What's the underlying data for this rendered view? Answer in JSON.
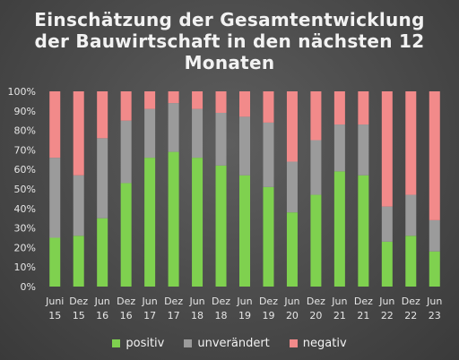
{
  "chart_data": {
    "type": "bar",
    "stacked": true,
    "title": "Einschätzung der Gesamtentwicklung der Bauwirtschaft in den nächsten 12 Monaten",
    "title_lines": [
      "Einschätzung der Gesamtentwicklung",
      "der Bauwirtschaft in den nächsten 12",
      "Monaten"
    ],
    "categories": [
      "Juni 15",
      "Dez 15",
      "Jun 16",
      "Dez 16",
      "Jun 17",
      "Dez 17",
      "Jun 18",
      "Dez 18",
      "Jun 19",
      "Dez 19",
      "Jun 20",
      "Dez 20",
      "Jun 21",
      "Dez 21",
      "Jun 22",
      "Dez 22",
      "Jun 23"
    ],
    "category_lines": [
      [
        "Juni",
        "15"
      ],
      [
        "Dez",
        "15"
      ],
      [
        "Jun",
        "16"
      ],
      [
        "Dez",
        "16"
      ],
      [
        "Jun",
        "17"
      ],
      [
        "Dez",
        "17"
      ],
      [
        "Jun",
        "18"
      ],
      [
        "Dez",
        "18"
      ],
      [
        "Jun",
        "19"
      ],
      [
        "Dez",
        "19"
      ],
      [
        "Jun",
        "20"
      ],
      [
        "Dez",
        "20"
      ],
      [
        "Jun",
        "21"
      ],
      [
        "Dez",
        "21"
      ],
      [
        "Jun",
        "22"
      ],
      [
        "Dez",
        "22"
      ],
      [
        "Jun",
        "23"
      ]
    ],
    "series": [
      {
        "name": "positiv",
        "color": "#7fd14f",
        "values": [
          25,
          26,
          35,
          53,
          66,
          69,
          66,
          62,
          57,
          51,
          38,
          47,
          59,
          57,
          23,
          26,
          18
        ]
      },
      {
        "name": "unverändert",
        "color": "#9b9b9b",
        "values": [
          41,
          31,
          41,
          32,
          25,
          25,
          25,
          27,
          30,
          33,
          26,
          28,
          24,
          26,
          18,
          21,
          16
        ]
      },
      {
        "name": "negativ",
        "color": "#f28a8a",
        "values": [
          34,
          43,
          24,
          15,
          9,
          6,
          9,
          11,
          13,
          16,
          36,
          25,
          17,
          17,
          59,
          53,
          66
        ]
      }
    ],
    "yticks": [
      "0%",
      "10%",
      "20%",
      "30%",
      "40%",
      "50%",
      "60%",
      "70%",
      "80%",
      "90%",
      "100%"
    ],
    "ylim": [
      0,
      100
    ],
    "grid": false,
    "legend_position": "bottom"
  }
}
